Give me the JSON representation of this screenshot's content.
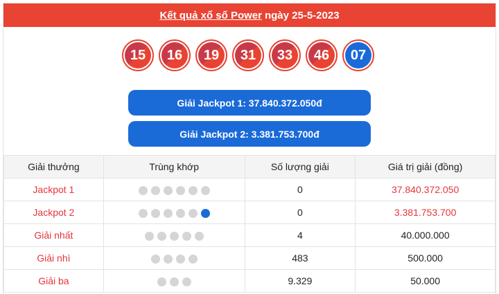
{
  "header": {
    "link": "Kết quả xổ số Power",
    "date": "ngày 25-5-2023"
  },
  "balls": [
    "15",
    "16",
    "19",
    "31",
    "33",
    "46"
  ],
  "power_ball": "07",
  "jackpot1": "Giải Jackpot 1: 37.840.372.050đ",
  "jackpot2": "Giải Jackpot 2: 3.381.753.700đ",
  "table": {
    "headers": [
      "Giải thưởng",
      "Trùng khớp",
      "Số lượng giải",
      "Giá trị giải (đồng)"
    ],
    "rows": [
      {
        "name": "Jackpot 1",
        "dots": 6,
        "power": false,
        "count": "0",
        "value": "37.840.372.050",
        "red": true
      },
      {
        "name": "Jackpot 2",
        "dots": 5,
        "power": true,
        "count": "0",
        "value": "3.381.753.700",
        "red": true
      },
      {
        "name": "Giải nhất",
        "dots": 5,
        "power": false,
        "count": "4",
        "value": "40.000.000",
        "red": false
      },
      {
        "name": "Giải nhì",
        "dots": 4,
        "power": false,
        "count": "483",
        "value": "500.000",
        "red": false
      },
      {
        "name": "Giải ba",
        "dots": 3,
        "power": false,
        "count": "9.329",
        "value": "50.000",
        "red": false
      }
    ]
  },
  "colors": {
    "header": "#e84333",
    "blue": "#1a6ad8",
    "prize_red": "#e8333a"
  }
}
